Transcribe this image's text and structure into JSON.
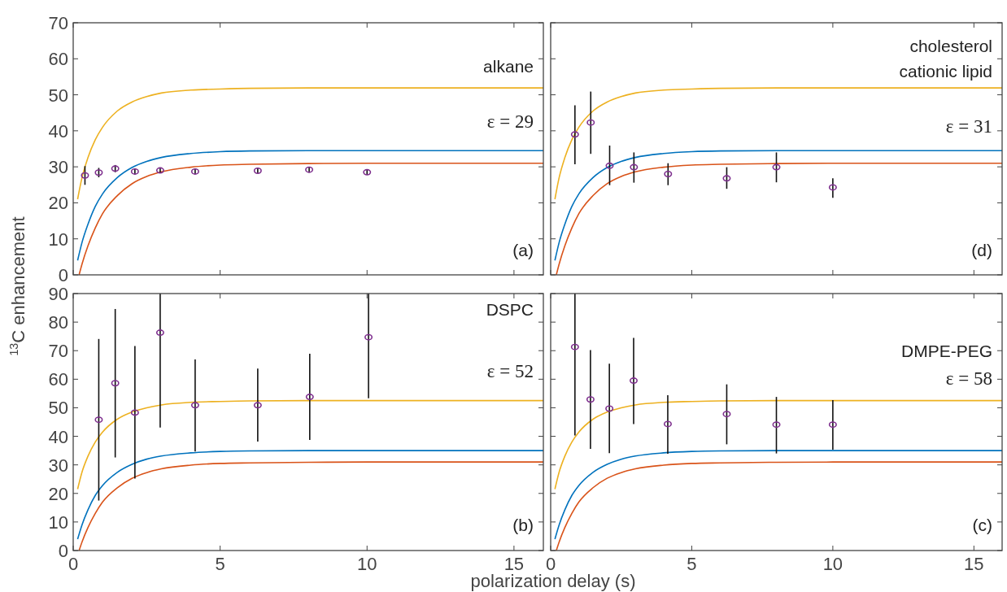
{
  "chart_data": [
    {
      "type": "line",
      "ylabel": "$^{13}$C enhancement",
      "xlim": [
        0,
        16
      ],
      "ylim": [
        0,
        70
      ],
      "xticks": [
        0,
        5,
        10,
        15
      ],
      "yticks": [
        0,
        10,
        20,
        30,
        40,
        50,
        60,
        70
      ],
      "tick_labels": "y",
      "annotations": [
        "alkane",
        "ε = 29",
        "(a)"
      ],
      "series": [
        {
          "color": "#edb120",
          "x": [
            0.15,
            0.3,
            0.5,
            0.75,
            1,
            1.5,
            2,
            2.5,
            3,
            4,
            5,
            6,
            8,
            10,
            13,
            16
          ],
          "values": [
            21,
            27,
            32.5,
            37.5,
            41,
            45.5,
            48,
            49.5,
            50.5,
            51.3,
            51.6,
            51.8,
            51.9,
            51.9,
            51.9,
            51.9
          ]
        },
        {
          "color": "#0072bd",
          "x": [
            0.15,
            0.3,
            0.5,
            0.75,
            1,
            1.5,
            2,
            2.5,
            3,
            4,
            5,
            6,
            8,
            10,
            13,
            16
          ],
          "values": [
            4,
            9,
            14,
            19,
            22.5,
            27,
            29.8,
            31.5,
            32.6,
            33.7,
            34.2,
            34.4,
            34.5,
            34.5,
            34.5,
            34.5
          ]
        },
        {
          "color": "#d95319",
          "x": [
            0.2,
            0.3,
            0.5,
            0.75,
            1,
            1.5,
            2,
            2.5,
            3,
            4,
            5,
            6,
            8,
            10,
            13,
            16
          ],
          "values": [
            0,
            3,
            8,
            13,
            17,
            22,
            25.3,
            27.3,
            28.6,
            29.9,
            30.5,
            30.7,
            30.9,
            31,
            31,
            31
          ]
        },
        {
          "type": "scatter",
          "marker": "circle",
          "color": "#7e2f8e",
          "x": [
            0.4,
            0.87,
            1.43,
            2.1,
            2.96,
            4.15,
            6.28,
            8.03,
            10
          ],
          "values": [
            27.6,
            28.4,
            29.5,
            28.7,
            29,
            28.7,
            28.9,
            29.2,
            28.5
          ],
          "errors": [
            2.6,
            1.3,
            1,
            0.8,
            0.8,
            0.7,
            0.7,
            0.8,
            0.7
          ]
        }
      ]
    },
    {
      "type": "line",
      "xlim": [
        0,
        16
      ],
      "ylim": [
        0,
        70
      ],
      "xticks": [
        0,
        5,
        10,
        15
      ],
      "yticks": [
        0,
        10,
        20,
        30,
        40,
        50,
        60,
        70
      ],
      "tick_labels": false,
      "annotations": [
        "cholesterol",
        "cationic lipid",
        "ε = 31",
        "(d)"
      ],
      "series": [
        {
          "color": "#edb120",
          "x": [
            0.15,
            0.3,
            0.5,
            0.75,
            1,
            1.5,
            2,
            2.5,
            3,
            4,
            5,
            6,
            8,
            10,
            13,
            16
          ],
          "values": [
            21,
            27,
            32.5,
            37.5,
            41,
            45.5,
            48,
            49.5,
            50.5,
            51.3,
            51.6,
            51.8,
            51.9,
            51.9,
            51.9,
            51.9
          ]
        },
        {
          "color": "#0072bd",
          "x": [
            0.15,
            0.3,
            0.5,
            0.75,
            1,
            1.5,
            2,
            2.5,
            3,
            4,
            5,
            6,
            8,
            10,
            13,
            16
          ],
          "values": [
            4,
            9,
            14,
            19,
            22.5,
            27,
            29.8,
            31.5,
            32.6,
            33.7,
            34.2,
            34.4,
            34.5,
            34.5,
            34.5,
            34.5
          ]
        },
        {
          "color": "#d95319",
          "x": [
            0.2,
            0.3,
            0.5,
            0.75,
            1,
            1.5,
            2,
            2.5,
            3,
            4,
            5,
            6,
            8,
            10,
            13,
            16
          ],
          "values": [
            0,
            3,
            8,
            13,
            17,
            22,
            25.3,
            27.3,
            28.6,
            29.9,
            30.5,
            30.7,
            30.9,
            31,
            31,
            31
          ]
        },
        {
          "type": "scatter",
          "marker": "circle",
          "color": "#7e2f8e",
          "x": [
            0.86,
            1.42,
            2.09,
            2.95,
            4.16,
            6.24,
            8,
            10
          ],
          "values": [
            39,
            42.3,
            30.3,
            29.9,
            28,
            26.8,
            29.9,
            24.3
          ],
          "errors": [
            [
              30.7,
              47.1
            ],
            [
              33.6,
              50.9
            ],
            [
              24.9,
              35.9
            ],
            [
              25.6,
              34
            ],
            [
              24.9,
              31
            ],
            [
              23.9,
              29.9
            ],
            [
              25.7,
              34
            ],
            [
              21.4,
              26.8
            ]
          ]
        }
      ]
    },
    {
      "type": "line",
      "xlabel": "polarization delay (s)",
      "xlim": [
        0,
        16
      ],
      "ylim": [
        0,
        90
      ],
      "xticks": [
        0,
        5,
        10,
        15
      ],
      "yticks": [
        0,
        10,
        20,
        30,
        40,
        50,
        60,
        70,
        80,
        90
      ],
      "annotations": [
        "DSPC",
        "ε = 52",
        "(b)"
      ],
      "series": [
        {
          "color": "#edb120",
          "x": [
            0.15,
            0.3,
            0.5,
            0.75,
            1,
            1.5,
            2,
            2.5,
            3,
            4,
            5,
            6,
            8,
            10,
            13,
            16
          ],
          "values": [
            21.5,
            27.5,
            33,
            38,
            41.5,
            46,
            48.5,
            50,
            51,
            51.9,
            52.2,
            52.4,
            52.5,
            52.5,
            52.5,
            52.5
          ]
        },
        {
          "color": "#0072bd",
          "x": [
            0.15,
            0.3,
            0.5,
            0.75,
            1,
            1.5,
            2,
            2.5,
            3,
            4,
            5,
            6,
            8,
            10,
            13,
            16
          ],
          "values": [
            4,
            9,
            14.2,
            19.3,
            22.8,
            27.4,
            30.2,
            32,
            33.1,
            34.2,
            34.7,
            34.9,
            35,
            35,
            35,
            35
          ]
        },
        {
          "color": "#d95319",
          "x": [
            0.2,
            0.3,
            0.5,
            0.75,
            1,
            1.5,
            2,
            2.5,
            3,
            4,
            5,
            6,
            8,
            10,
            13,
            16
          ],
          "values": [
            0,
            3,
            8,
            13,
            17,
            22,
            25.3,
            27.3,
            28.6,
            29.9,
            30.5,
            30.7,
            30.9,
            31,
            31,
            31
          ]
        },
        {
          "type": "scatter",
          "marker": "circle",
          "color": "#7e2f8e",
          "x": [
            0.87,
            1.43,
            2.1,
            2.96,
            4.15,
            6.28,
            8.05,
            10.05
          ],
          "values": [
            45.8,
            58.6,
            48.3,
            76.3,
            50.9,
            50.9,
            53.8,
            74.7
          ],
          "errors": [
            [
              17.5,
              74.1
            ],
            [
              32.6,
              84.6
            ],
            [
              25.2,
              71.6
            ],
            [
              43.1,
              90
            ],
            [
              34.7,
              66.9
            ],
            [
              38.2,
              63.7
            ],
            [
              38.7,
              68.9
            ],
            [
              53.3,
              90
            ]
          ]
        }
      ]
    },
    {
      "type": "line",
      "xlim": [
        0,
        16
      ],
      "ylim": [
        0,
        90
      ],
      "xticks": [
        0,
        5,
        10,
        15
      ],
      "yticks": [
        0,
        10,
        20,
        30,
        40,
        50,
        60,
        70,
        80,
        90
      ],
      "tick_labels": "x",
      "annotations": [
        "DMPE-PEG",
        "ε = 58",
        "(c)"
      ],
      "series": [
        {
          "color": "#edb120",
          "x": [
            0.15,
            0.3,
            0.5,
            0.75,
            1,
            1.5,
            2,
            2.5,
            3,
            4,
            5,
            6,
            8,
            10,
            13,
            16
          ],
          "values": [
            21.5,
            27.5,
            33,
            38,
            41.5,
            46,
            48.5,
            50,
            51,
            51.9,
            52.2,
            52.4,
            52.5,
            52.5,
            52.5,
            52.5
          ]
        },
        {
          "color": "#0072bd",
          "x": [
            0.15,
            0.3,
            0.5,
            0.75,
            1,
            1.5,
            2,
            2.5,
            3,
            4,
            5,
            6,
            8,
            10,
            13,
            16
          ],
          "values": [
            4,
            9,
            14.2,
            19.3,
            22.8,
            27.4,
            30.2,
            32,
            33.1,
            34.2,
            34.7,
            34.9,
            35,
            35,
            35,
            35
          ]
        },
        {
          "color": "#d95319",
          "x": [
            0.2,
            0.3,
            0.5,
            0.75,
            1,
            1.5,
            2,
            2.5,
            3,
            4,
            5,
            6,
            8,
            10,
            13,
            16
          ],
          "values": [
            0,
            3,
            8,
            13,
            17,
            22,
            25.3,
            27.3,
            28.6,
            29.9,
            30.5,
            30.7,
            30.9,
            31,
            31,
            31
          ]
        },
        {
          "type": "scatter",
          "marker": "circle",
          "color": "#7e2f8e",
          "x": [
            0.86,
            1.41,
            2.08,
            2.94,
            4.15,
            6.24,
            8,
            10
          ],
          "values": [
            71.3,
            52.9,
            49.7,
            59.5,
            44.3,
            47.8,
            44.1,
            44.1
          ],
          "errors": [
            [
              40.3,
              90
            ],
            [
              35.6,
              70.2
            ],
            [
              34.1,
              65.4
            ],
            [
              44.3,
              74.5
            ],
            [
              33.9,
              54.4
            ],
            [
              37.2,
              58.2
            ],
            [
              34,
              53.8
            ],
            [
              35.3,
              52.7
            ]
          ]
        }
      ]
    }
  ]
}
